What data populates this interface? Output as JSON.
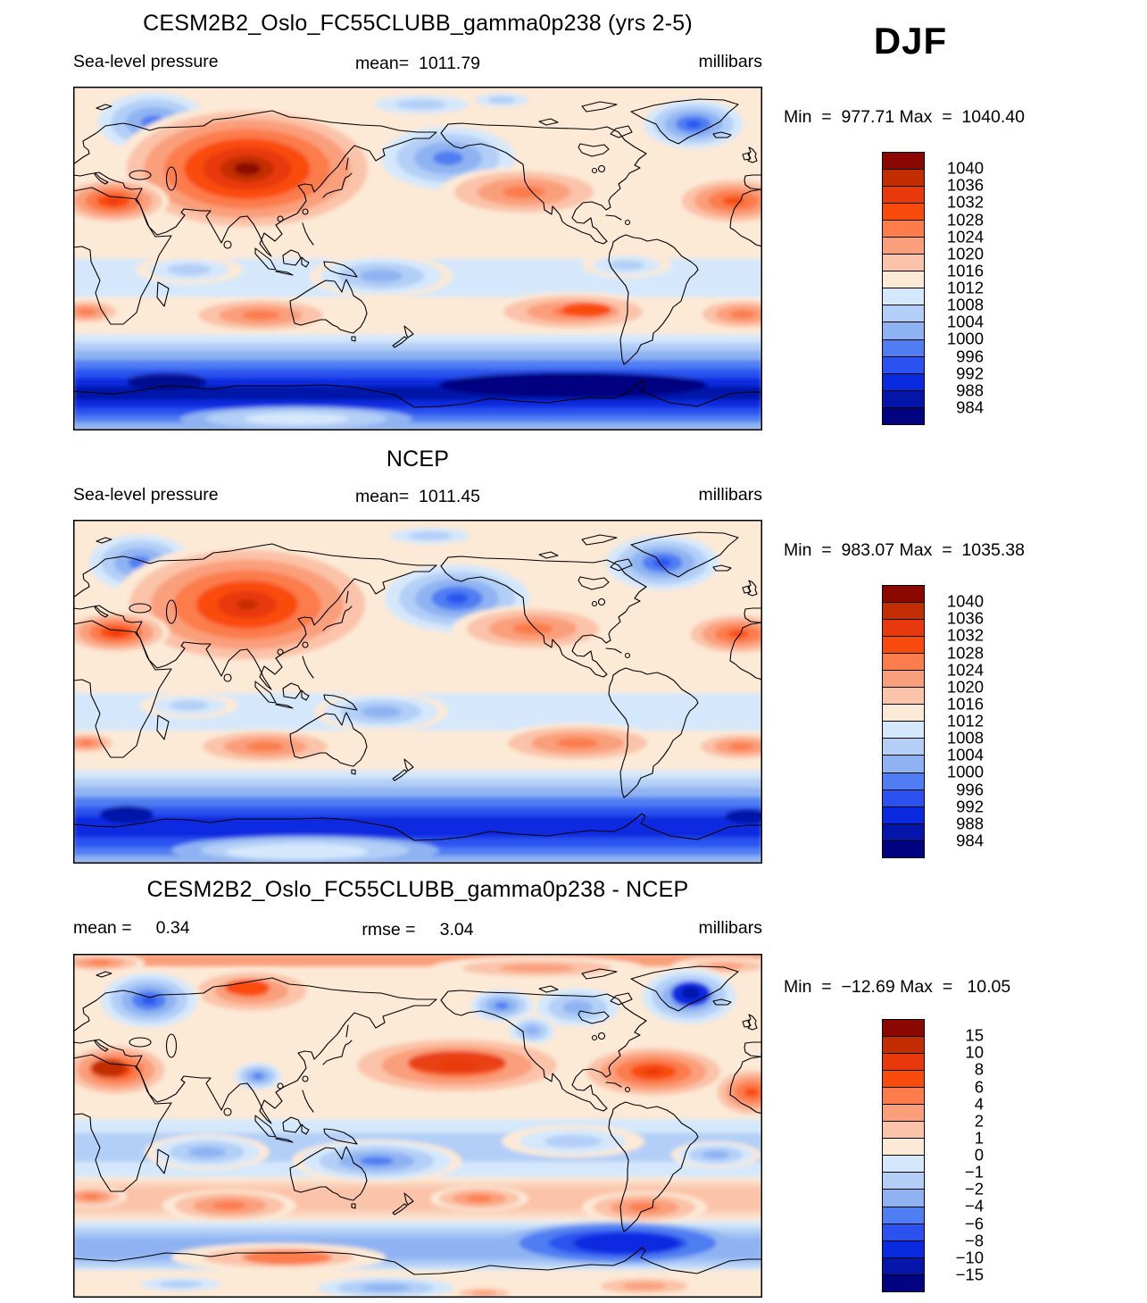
{
  "header": {
    "season": "DJF"
  },
  "panels": [
    {
      "title": "CESM2B2_Oslo_FC55CLUBB_gamma0p238 (yrs 2-5)",
      "left_label": "Sea-level pressure",
      "center_label": "mean=  1011.79",
      "right_label": "millibars",
      "range_line": "Min  =  977.71 Max  =  1040.40"
    },
    {
      "title": "NCEP",
      "left_label": "Sea-level pressure",
      "center_label": "mean=  1011.45",
      "right_label": "millibars",
      "range_line": "Min  =  983.07 Max  =  1035.38"
    },
    {
      "title": "CESM2B2_Oslo_FC55CLUBB_gamma0p238 - NCEP",
      "left_label": "mean =     0.34",
      "center_label": "rmse =     3.04",
      "right_label": "millibars",
      "range_line": "Min  =  −12.69 Max  =   10.05"
    }
  ],
  "palette": [
    "#8B0800",
    "#C22D02",
    "#E8380E",
    "#FA4B0F",
    "#FC7C4C",
    "#FA9F7B",
    "#FBC3A9",
    "#FCE9D6",
    "#D5E8FB",
    "#B3CFF7",
    "#8FB3F2",
    "#4F7EF2",
    "#2B52F0",
    "#0A2AE0",
    "#0515A9",
    "#010380"
  ],
  "colorbars": [
    {
      "labels": [
        "1040",
        "1036",
        "1032",
        "1028",
        "1024",
        "1020",
        "1016",
        "1012",
        "1008",
        "1004",
        "1000",
        "996",
        "992",
        "988",
        "984"
      ]
    },
    {
      "labels": [
        "1040",
        "1036",
        "1032",
        "1028",
        "1024",
        "1020",
        "1016",
        "1012",
        "1008",
        "1004",
        "1000",
        "996",
        "992",
        "988",
        "984"
      ]
    },
    {
      "labels": [
        "15",
        "10",
        "8",
        "6",
        "4",
        "2",
        "1",
        "0",
        "−1",
        "−2",
        "−4",
        "−6",
        "−8",
        "−10",
        "−15"
      ]
    }
  ],
  "chart_data": [
    {
      "type": "heatmap",
      "subtype": "filled-contour world map",
      "title": "CESM2B2_Oslo_FC55CLUBB_gamma0p238 (yrs 2-5)",
      "variable": "Sea-level pressure",
      "season": "DJF",
      "units": "millibars",
      "stats": {
        "mean": 1011.79,
        "min": 977.71,
        "max": 1040.4
      },
      "contour_levels": [
        984,
        988,
        992,
        996,
        1000,
        1004,
        1008,
        1012,
        1016,
        1020,
        1024,
        1028,
        1032,
        1036,
        1040
      ],
      "projection": "cylindrical equidistant, 0-360E, 90S-90N",
      "legend_position": "right",
      "notable_features": [
        "dark-red Siberian high ~1040 mb over Mongolia",
        "blue Aleutian and Icelandic lows",
        "orange subtropical highs ~30N and ~30S",
        "deep navy circumpolar trough ~60S (<984 mb)"
      ]
    },
    {
      "type": "heatmap",
      "subtype": "filled-contour world map",
      "title": "NCEP",
      "variable": "Sea-level pressure",
      "season": "DJF",
      "units": "millibars",
      "stats": {
        "mean": 1011.45,
        "min": 983.07,
        "max": 1035.38
      },
      "contour_levels": [
        984,
        988,
        992,
        996,
        1000,
        1004,
        1008,
        1012,
        1016,
        1020,
        1024,
        1028,
        1032,
        1036,
        1040
      ],
      "projection": "cylindrical equidistant, 0-360E, 90S-90N",
      "legend_position": "right",
      "notable_features": [
        "strong Siberian high",
        "deep blue Aleutian low",
        "Icelandic low near SE Greenland",
        "circumpolar trough ~60S with lighter Antarctic interior"
      ]
    },
    {
      "type": "heatmap",
      "subtype": "filled-contour difference map",
      "title": "CESM2B2_Oslo_FC55CLUBB_gamma0p238 - NCEP",
      "variable": "Sea-level pressure difference",
      "season": "DJF",
      "units": "millibars",
      "stats": {
        "mean": 0.34,
        "rmse": 3.04,
        "min": -12.69,
        "max": 10.05
      },
      "contour_levels": [
        -15,
        -10,
        -8,
        -6,
        -4,
        -2,
        -1,
        0,
        1,
        2,
        4,
        6,
        8,
        10,
        15
      ],
      "projection": "cylindrical equidistant, 0-360E, 90S-90N",
      "legend_position": "right",
      "notable_features": [
        "strong negative (blue) over Greenland ~-12",
        "negative over Scandinavia and Tibet",
        "positive (red) band across N Pacific midlatitudes and N Atlantic",
        "positive band 35-50S, negative circumpolar band ~60S"
      ]
    }
  ]
}
